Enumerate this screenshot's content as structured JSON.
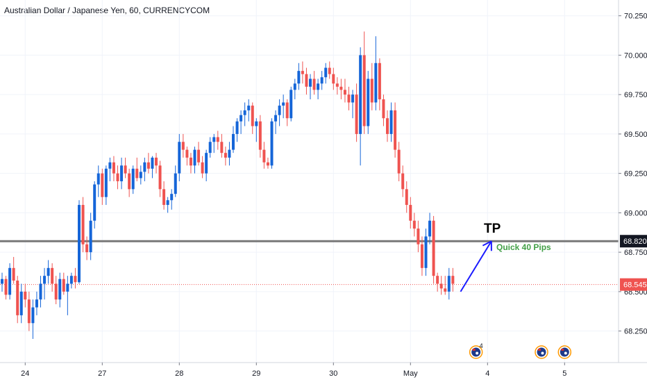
{
  "header": {
    "title": "Australian Dollar / Japanese Yen, 60, CURRENCYCOM"
  },
  "annotations": {
    "tp_label": "TP",
    "pips_label": "Quick 40 Pips",
    "tp_price": "68.820",
    "current_price": "68.545",
    "event_count": "4"
  },
  "colors": {
    "up": "#1565d8",
    "down": "#ef5350",
    "tp_line": "#787878",
    "current_line": "#ef5350",
    "pips_text": "#43a047",
    "arrow": "#1a1aff",
    "tp_tag_bg": "#131722",
    "current_tag_bg": "#ef5350"
  },
  "icons": {
    "event_marker": "australia-flag-icon"
  },
  "chart_data": {
    "type": "candlestick",
    "title": "Australian Dollar / Japanese Yen, 60, CURRENCYCOM",
    "ylim": [
      68.05,
      70.35
    ],
    "y_ticks": [
      {
        "value": 70.25,
        "label": "70.250"
      },
      {
        "value": 70.0,
        "label": "70.000"
      },
      {
        "value": 69.75,
        "label": "69.750"
      },
      {
        "value": 69.5,
        "label": "69.500"
      },
      {
        "value": 69.25,
        "label": "69.250"
      },
      {
        "value": 69.0,
        "label": "69.000"
      },
      {
        "value": 68.75,
        "label": "68.750"
      },
      {
        "value": 68.5,
        "label": "68.500"
      },
      {
        "value": 68.25,
        "label": "68.250"
      }
    ],
    "x_ticks": [
      {
        "index": 6,
        "label": "24"
      },
      {
        "index": 26,
        "label": "27"
      },
      {
        "index": 46,
        "label": "28"
      },
      {
        "index": 66,
        "label": "29"
      },
      {
        "index": 86,
        "label": "30"
      },
      {
        "index": 106,
        "label": "May"
      },
      {
        "index": 126,
        "label": "4"
      },
      {
        "index": 146,
        "label": "5"
      }
    ],
    "n_slots": 160,
    "horizontal_lines": [
      {
        "value": 68.82,
        "label": "68.820",
        "style": "solid"
      },
      {
        "value": 68.545,
        "label": "68.545",
        "style": "dotted"
      }
    ],
    "event_markers": [
      123,
      140,
      146
    ],
    "arrow": {
      "from": {
        "index": 119,
        "value": 68.5
      },
      "to": {
        "index": 127,
        "value": 68.82
      }
    },
    "candles": [
      [
        68.55,
        68.62,
        68.5,
        68.58
      ],
      [
        68.58,
        68.6,
        68.45,
        68.48
      ],
      [
        68.48,
        68.68,
        68.45,
        68.65
      ],
      [
        68.65,
        68.72,
        68.55,
        68.57
      ],
      [
        68.57,
        68.6,
        68.3,
        68.35
      ],
      [
        68.35,
        68.55,
        68.3,
        68.5
      ],
      [
        68.5,
        68.55,
        68.4,
        68.45
      ],
      [
        68.45,
        68.5,
        68.25,
        68.3
      ],
      [
        68.3,
        68.45,
        68.2,
        68.4
      ],
      [
        68.4,
        68.5,
        68.35,
        68.45
      ],
      [
        68.45,
        68.6,
        68.4,
        68.55
      ],
      [
        68.55,
        68.65,
        68.45,
        68.6
      ],
      [
        68.6,
        68.7,
        68.55,
        68.65
      ],
      [
        68.65,
        68.68,
        68.5,
        68.55
      ],
      [
        68.55,
        68.6,
        68.42,
        68.45
      ],
      [
        68.45,
        68.62,
        68.4,
        68.58
      ],
      [
        68.58,
        68.62,
        68.48,
        68.5
      ],
      [
        68.5,
        68.6,
        68.35,
        68.55
      ],
      [
        68.55,
        68.62,
        68.52,
        68.6
      ],
      [
        68.6,
        68.65,
        68.52,
        68.56
      ],
      [
        68.56,
        69.08,
        68.55,
        69.05
      ],
      [
        69.05,
        69.1,
        68.75,
        68.8
      ],
      [
        68.8,
        68.85,
        68.7,
        68.75
      ],
      [
        68.75,
        69.0,
        68.7,
        68.95
      ],
      [
        68.95,
        69.2,
        68.9,
        69.18
      ],
      [
        69.18,
        69.3,
        69.1,
        69.25
      ],
      [
        69.25,
        69.28,
        69.05,
        69.1
      ],
      [
        69.1,
        69.3,
        69.05,
        69.28
      ],
      [
        69.28,
        69.35,
        69.2,
        69.32
      ],
      [
        69.32,
        69.36,
        69.2,
        69.25
      ],
      [
        69.25,
        69.3,
        69.15,
        69.2
      ],
      [
        69.2,
        69.35,
        69.15,
        69.3
      ],
      [
        69.3,
        69.35,
        69.22,
        69.25
      ],
      [
        69.25,
        69.28,
        69.1,
        69.15
      ],
      [
        69.15,
        69.3,
        69.12,
        69.28
      ],
      [
        69.28,
        69.35,
        69.2,
        69.22
      ],
      [
        69.22,
        69.3,
        69.18,
        69.26
      ],
      [
        69.26,
        69.35,
        69.2,
        69.32
      ],
      [
        69.32,
        69.38,
        69.25,
        69.28
      ],
      [
        69.28,
        69.36,
        69.22,
        69.35
      ],
      [
        69.35,
        69.38,
        69.25,
        69.3
      ],
      [
        69.3,
        69.33,
        69.1,
        69.15
      ],
      [
        69.15,
        69.2,
        69.02,
        69.05
      ],
      [
        69.05,
        69.1,
        69.0,
        69.08
      ],
      [
        69.08,
        69.15,
        69.02,
        69.12
      ],
      [
        69.12,
        69.3,
        69.1,
        69.25
      ],
      [
        69.25,
        69.5,
        69.2,
        69.45
      ],
      [
        69.45,
        69.5,
        69.35,
        69.4
      ],
      [
        69.4,
        69.42,
        69.3,
        69.35
      ],
      [
        69.35,
        69.38,
        69.25,
        69.3
      ],
      [
        69.3,
        69.42,
        69.25,
        69.4
      ],
      [
        69.4,
        69.45,
        69.3,
        69.32
      ],
      [
        69.32,
        69.36,
        69.22,
        69.25
      ],
      [
        69.25,
        69.4,
        69.2,
        69.38
      ],
      [
        69.38,
        69.48,
        69.35,
        69.45
      ],
      [
        69.45,
        69.5,
        69.38,
        69.48
      ],
      [
        69.48,
        69.52,
        69.4,
        69.45
      ],
      [
        69.45,
        69.5,
        69.35,
        69.38
      ],
      [
        69.38,
        69.42,
        69.3,
        69.35
      ],
      [
        69.35,
        69.45,
        69.3,
        69.4
      ],
      [
        69.4,
        69.55,
        69.38,
        69.5
      ],
      [
        69.5,
        69.6,
        69.45,
        69.58
      ],
      [
        69.58,
        69.65,
        69.5,
        69.62
      ],
      [
        69.62,
        69.7,
        69.55,
        69.65
      ],
      [
        69.65,
        69.72,
        69.58,
        69.68
      ],
      [
        69.68,
        69.7,
        69.5,
        69.55
      ],
      [
        69.55,
        69.6,
        69.45,
        69.58
      ],
      [
        69.58,
        69.62,
        69.35,
        69.4
      ],
      [
        69.4,
        69.45,
        69.28,
        69.32
      ],
      [
        69.32,
        69.35,
        69.28,
        69.3
      ],
      [
        69.3,
        69.6,
        69.28,
        69.58
      ],
      [
        69.58,
        69.65,
        69.5,
        69.62
      ],
      [
        69.62,
        69.72,
        69.55,
        69.68
      ],
      [
        69.68,
        69.75,
        69.6,
        69.7
      ],
      [
        69.7,
        69.72,
        69.55,
        69.6
      ],
      [
        69.6,
        69.8,
        69.58,
        69.78
      ],
      [
        69.78,
        69.85,
        69.72,
        69.82
      ],
      [
        69.82,
        69.95,
        69.78,
        69.9
      ],
      [
        69.9,
        69.96,
        69.82,
        69.88
      ],
      [
        69.88,
        69.92,
        69.75,
        69.8
      ],
      [
        69.8,
        69.88,
        69.72,
        69.85
      ],
      [
        69.85,
        69.9,
        69.75,
        69.78
      ],
      [
        69.78,
        69.85,
        69.72,
        69.82
      ],
      [
        69.82,
        69.9,
        69.78,
        69.86
      ],
      [
        69.86,
        69.95,
        69.82,
        69.92
      ],
      [
        69.92,
        69.96,
        69.85,
        69.88
      ],
      [
        69.88,
        69.92,
        69.78,
        69.82
      ],
      [
        69.82,
        69.86,
        69.75,
        69.8
      ],
      [
        69.8,
        69.85,
        69.72,
        69.78
      ],
      [
        69.78,
        69.85,
        69.7,
        69.75
      ],
      [
        69.75,
        69.8,
        69.65,
        69.7
      ],
      [
        69.7,
        69.78,
        69.6,
        69.75
      ],
      [
        69.75,
        69.82,
        69.45,
        69.5
      ],
      [
        69.5,
        70.05,
        69.3,
        70.0
      ],
      [
        70.0,
        70.15,
        69.5,
        69.55
      ],
      [
        69.55,
        69.9,
        69.5,
        69.85
      ],
      [
        69.85,
        69.95,
        69.65,
        69.7
      ],
      [
        69.7,
        70.12,
        69.65,
        69.95
      ],
      [
        69.95,
        69.98,
        69.65,
        69.72
      ],
      [
        69.72,
        69.75,
        69.55,
        69.6
      ],
      [
        69.6,
        69.65,
        69.45,
        69.5
      ],
      [
        69.5,
        69.7,
        69.45,
        69.65
      ],
      [
        69.65,
        69.7,
        69.35,
        69.4
      ],
      [
        69.4,
        69.45,
        69.2,
        69.25
      ],
      [
        69.25,
        69.3,
        69.1,
        69.15
      ],
      [
        69.15,
        69.2,
        69.0,
        69.05
      ],
      [
        69.05,
        69.1,
        68.9,
        68.95
      ],
      [
        68.95,
        69.0,
        68.85,
        68.9
      ],
      [
        68.9,
        68.95,
        68.75,
        68.8
      ],
      [
        68.8,
        68.85,
        68.6,
        68.65
      ],
      [
        68.65,
        68.9,
        68.6,
        68.85
      ],
      [
        68.85,
        69.0,
        68.8,
        68.95
      ],
      [
        68.95,
        68.98,
        68.55,
        68.6
      ],
      [
        68.6,
        68.62,
        68.5,
        68.55
      ],
      [
        68.55,
        68.6,
        68.48,
        68.52
      ],
      [
        68.52,
        68.6,
        68.48,
        68.5
      ],
      [
        68.5,
        68.65,
        68.45,
        68.6
      ],
      [
        68.6,
        68.65,
        68.5,
        68.55
      ]
    ]
  }
}
